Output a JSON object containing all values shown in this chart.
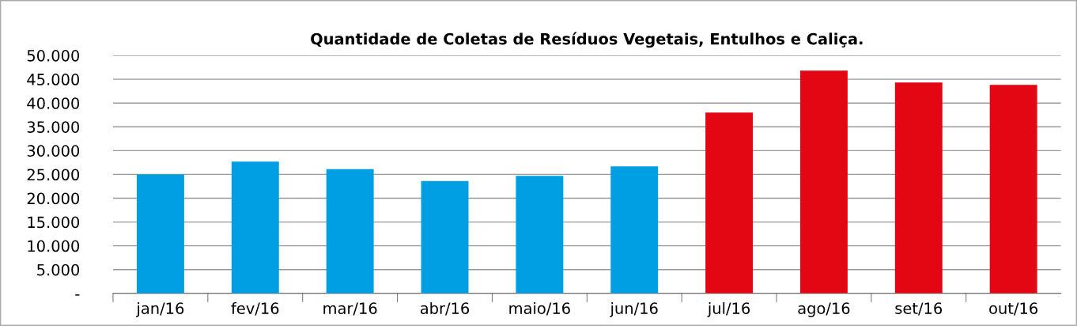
{
  "chart_data": {
    "type": "bar",
    "title": "Quantidade de Coletas de Resíduos Vegetais, Entulhos e Caliça.",
    "categories": [
      "jan/16",
      "fev/16",
      "mar/16",
      "abr/16",
      "maio/16",
      "jun/16",
      "jul/16",
      "ago/16",
      "set/16",
      "out/16"
    ],
    "values": [
      25000,
      27700,
      26100,
      23600,
      24700,
      26700,
      38000,
      46800,
      44300,
      43800
    ],
    "colors": [
      "#009fe3",
      "#009fe3",
      "#009fe3",
      "#009fe3",
      "#009fe3",
      "#009fe3",
      "#e30613",
      "#e30613",
      "#e30613",
      "#e30613"
    ],
    "ylim": [
      0,
      50000
    ],
    "yticks": [
      {
        "value": 0,
        "label": "-"
      },
      {
        "value": 5000,
        "label": "5.000"
      },
      {
        "value": 10000,
        "label": "10.000"
      },
      {
        "value": 15000,
        "label": "15.000"
      },
      {
        "value": 20000,
        "label": "20.000"
      },
      {
        "value": 25000,
        "label": "25.000"
      },
      {
        "value": 30000,
        "label": "30.000"
      },
      {
        "value": 35000,
        "label": "35.000"
      },
      {
        "value": 40000,
        "label": "40.000"
      },
      {
        "value": 45000,
        "label": "45.000"
      },
      {
        "value": 50000,
        "label": "50.000"
      }
    ],
    "grid": "y"
  }
}
